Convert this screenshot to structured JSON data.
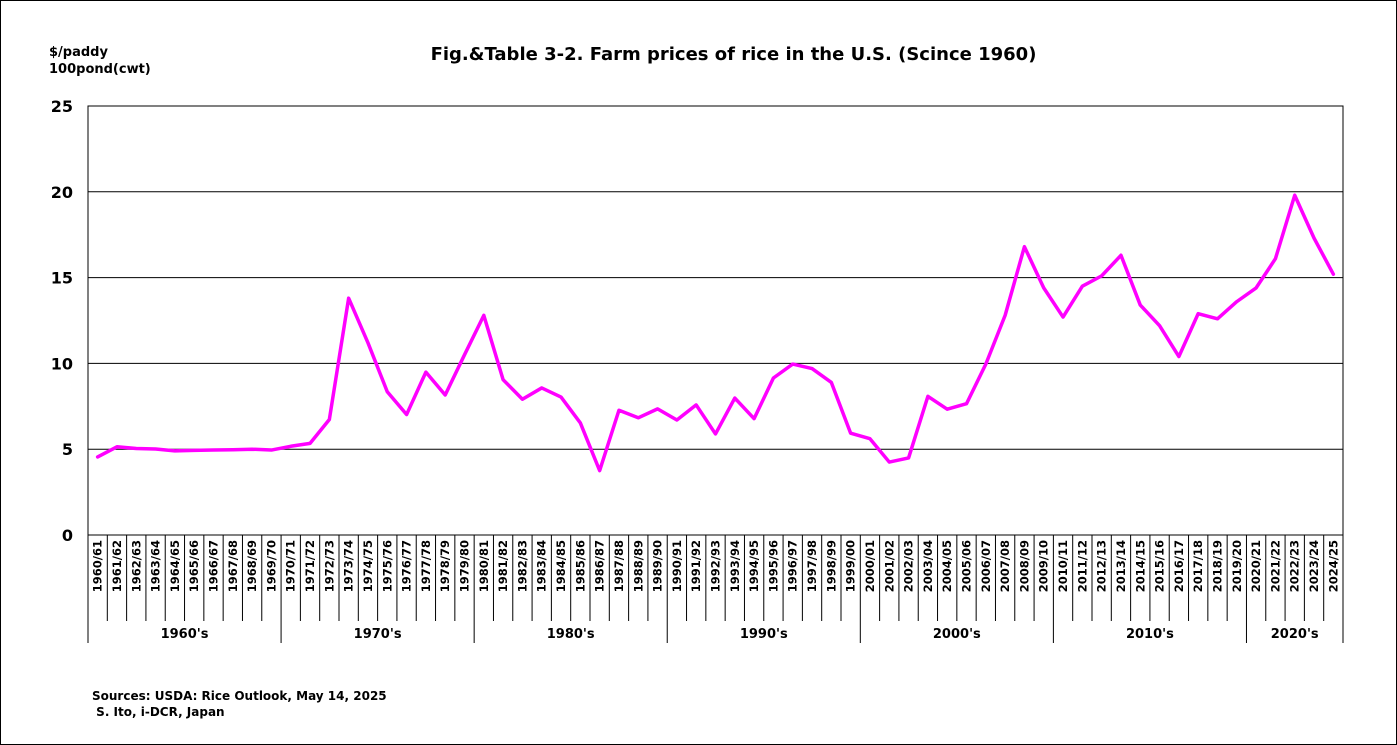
{
  "chart_data": {
    "type": "line",
    "title": "Fig.&Table 3-2.  Farm prices of rice in the U.S. (Scince 1960)",
    "ylabel_line1": "$/paddy",
    "ylabel_line2": "100pond(cwt)",
    "ylim": [
      0,
      25
    ],
    "yticks": [
      0,
      5,
      10,
      15,
      20,
      25
    ],
    "grid": true,
    "line_color": "#ff00ff",
    "categories": [
      "1960/61",
      "1961/62",
      "1962/63",
      "1963/64",
      "1964/65",
      "1965/66",
      "1966/67",
      "1967/68",
      "1968/69",
      "1969/70",
      "1970/71",
      "1971/72",
      "1972/73",
      "1973/74",
      "1974/75",
      "1975/76",
      "1976/77",
      "1977/78",
      "1978/79",
      "1979/80",
      "1980/81",
      "1981/82",
      "1982/83",
      "1983/84",
      "1984/85",
      "1985/86",
      "1986/87",
      "1987/88",
      "1988/89",
      "1989/90",
      "1990/91",
      "1991/92",
      "1992/93",
      "1993/94",
      "1994/95",
      "1995/96",
      "1996/97",
      "1997/98",
      "1998/99",
      "1999/00",
      "2000/01",
      "2001/02",
      "2002/03",
      "2003/04",
      "2004/05",
      "2005/06",
      "2006/07",
      "2007/08",
      "2008/09",
      "2009/10",
      "2010/11",
      "2011/12",
      "2012/13",
      "2013/14",
      "2014/15",
      "2015/16",
      "2016/17",
      "2017/18",
      "2018/19",
      "2019/20",
      "2020/21",
      "2021/22",
      "2022/23",
      "2023/24",
      "2024/25"
    ],
    "values": [
      4.55,
      5.14,
      5.04,
      5.01,
      4.9,
      4.93,
      4.95,
      4.97,
      5.0,
      4.95,
      5.17,
      5.34,
      6.73,
      13.8,
      11.2,
      8.35,
      7.02,
      9.49,
      8.16,
      10.5,
      12.8,
      9.05,
      7.91,
      8.57,
      8.04,
      6.53,
      3.75,
      7.27,
      6.83,
      7.35,
      6.7,
      7.58,
      5.89,
      7.98,
      6.78,
      9.15,
      9.96,
      9.7,
      8.89,
      5.93,
      5.61,
      4.25,
      4.49,
      8.08,
      7.33,
      7.65,
      9.96,
      12.8,
      16.8,
      14.4,
      12.7,
      14.5,
      15.1,
      16.3,
      13.4,
      12.2,
      10.4,
      12.9,
      12.6,
      13.6,
      14.4,
      16.1,
      19.8,
      17.3,
      15.2
    ],
    "decades": [
      {
        "label": "1960's",
        "count": 10
      },
      {
        "label": "1970's",
        "count": 10
      },
      {
        "label": "1980's",
        "count": 10
      },
      {
        "label": "1990's",
        "count": 10
      },
      {
        "label": "2000's",
        "count": 10
      },
      {
        "label": "2010's",
        "count": 10
      },
      {
        "label": "2020's",
        "count": 5
      }
    ]
  },
  "sources": {
    "line1": "Sources: USDA: Rice Outlook, May 14, 2025",
    "line2": " S. Ito, i-DCR, Japan"
  }
}
